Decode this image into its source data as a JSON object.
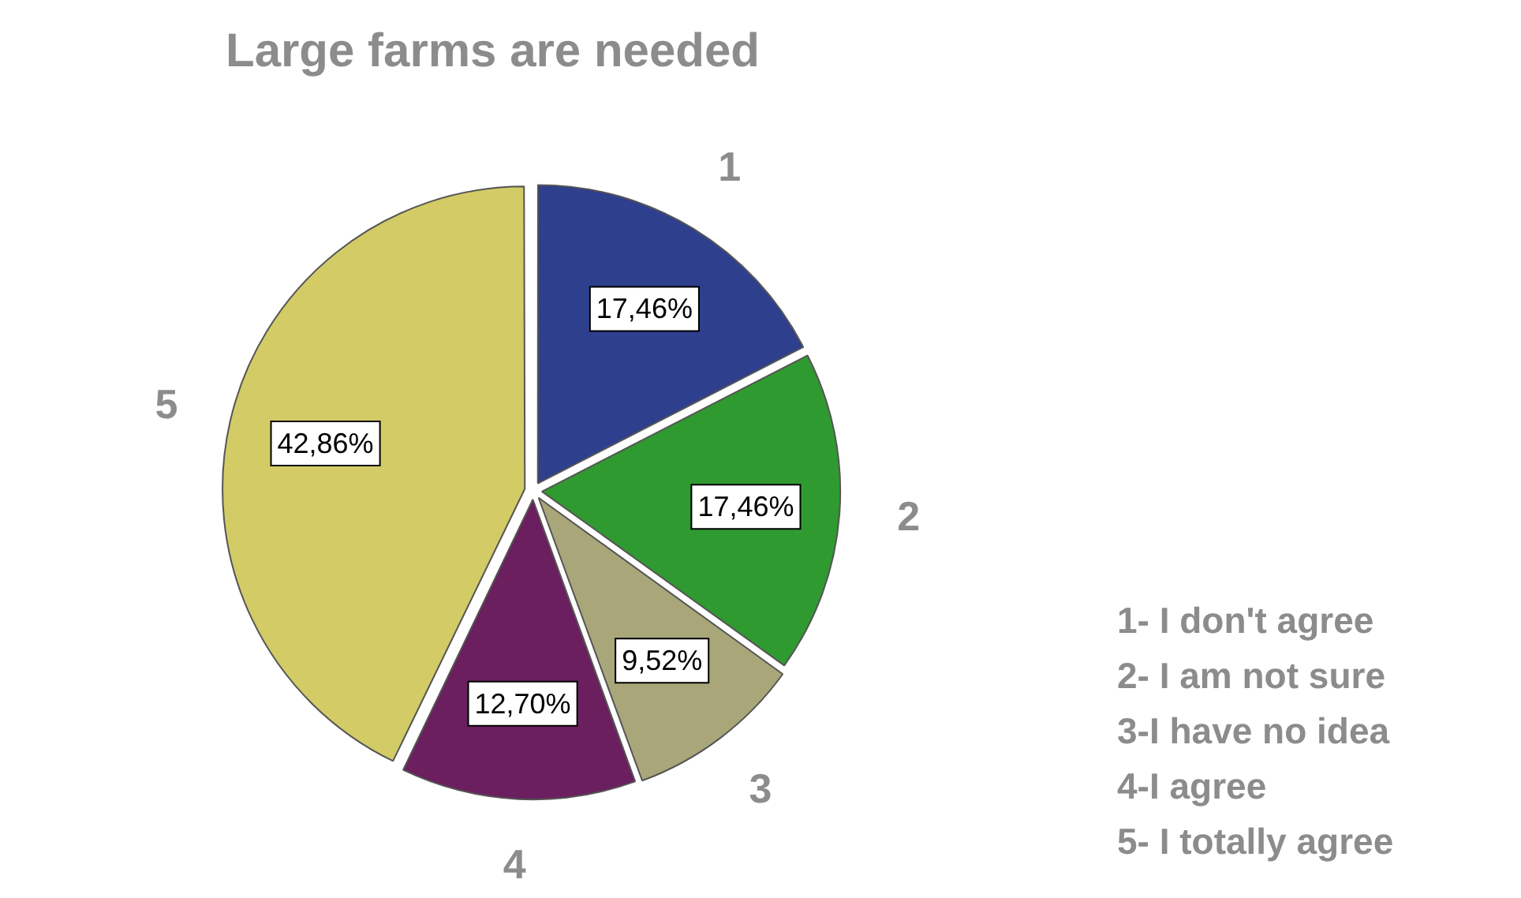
{
  "chart_data": {
    "type": "pie",
    "title": "Large farms are needed",
    "categories": [
      "1",
      "2",
      "3",
      "4",
      "5"
    ],
    "values": [
      17.46,
      17.46,
      9.52,
      12.7,
      42.86
    ],
    "value_labels": [
      "17,46%",
      "17,46%",
      "9,52%",
      "12,70%",
      "42,86%"
    ],
    "colors": [
      "#2e3f8e",
      "#2f9a30",
      "#a9a77a",
      "#6b1f5f",
      "#d3cb66"
    ],
    "legend": false,
    "annotations": [
      "1- I don't agree",
      "2- I am not sure",
      "3-I have no idea",
      "4-I agree",
      "5- I totally agree"
    ]
  }
}
